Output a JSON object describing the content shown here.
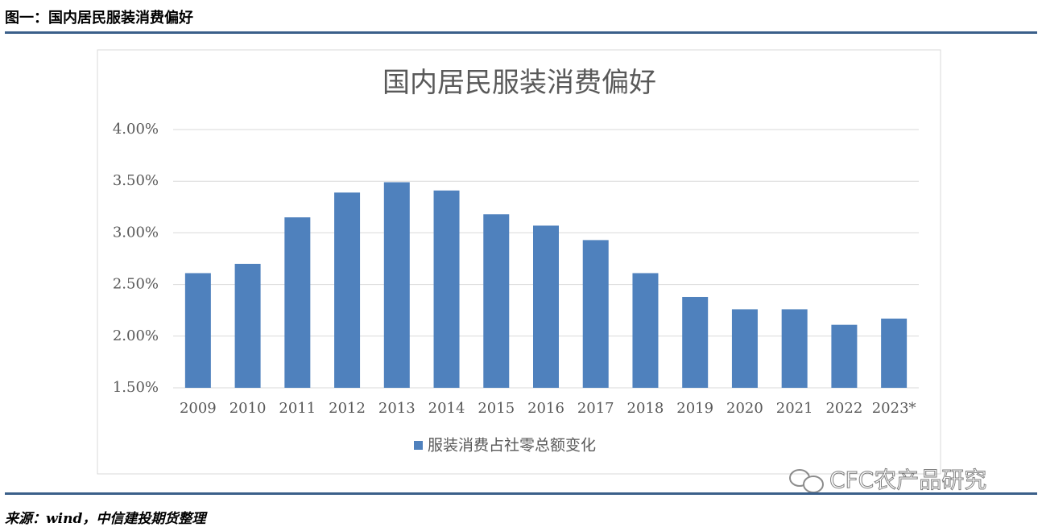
{
  "header": {
    "title": "图一：国内居民服装消费偏好"
  },
  "chart_data": {
    "type": "bar",
    "title": "国内居民服装消费偏好",
    "categories": [
      "2009",
      "2010",
      "2011",
      "2012",
      "2013",
      "2014",
      "2015",
      "2016",
      "2017",
      "2018",
      "2019",
      "2020",
      "2021",
      "2022",
      "2023*"
    ],
    "series": [
      {
        "name": "服装消费占社零总额变化",
        "color": "#4f81bd",
        "values": [
          2.61,
          2.7,
          3.15,
          3.39,
          3.49,
          3.41,
          3.18,
          3.07,
          2.93,
          2.61,
          2.38,
          2.26,
          2.26,
          2.11,
          2.17
        ]
      }
    ],
    "ylim": [
      1.5,
      4.0
    ],
    "yticks": [
      {
        "value": 1.5,
        "label": "1.50%"
      },
      {
        "value": 2.0,
        "label": "2.00%"
      },
      {
        "value": 2.5,
        "label": "2.50%"
      },
      {
        "value": 3.0,
        "label": "3.00%"
      },
      {
        "value": 3.5,
        "label": "3.50%"
      },
      {
        "value": 4.0,
        "label": "4.00%"
      }
    ],
    "grid": true,
    "legend": "bottom"
  },
  "watermark": {
    "text": "CFC农产品研究"
  },
  "footer": {
    "source": "来源：wind，中信建投期货整理"
  }
}
